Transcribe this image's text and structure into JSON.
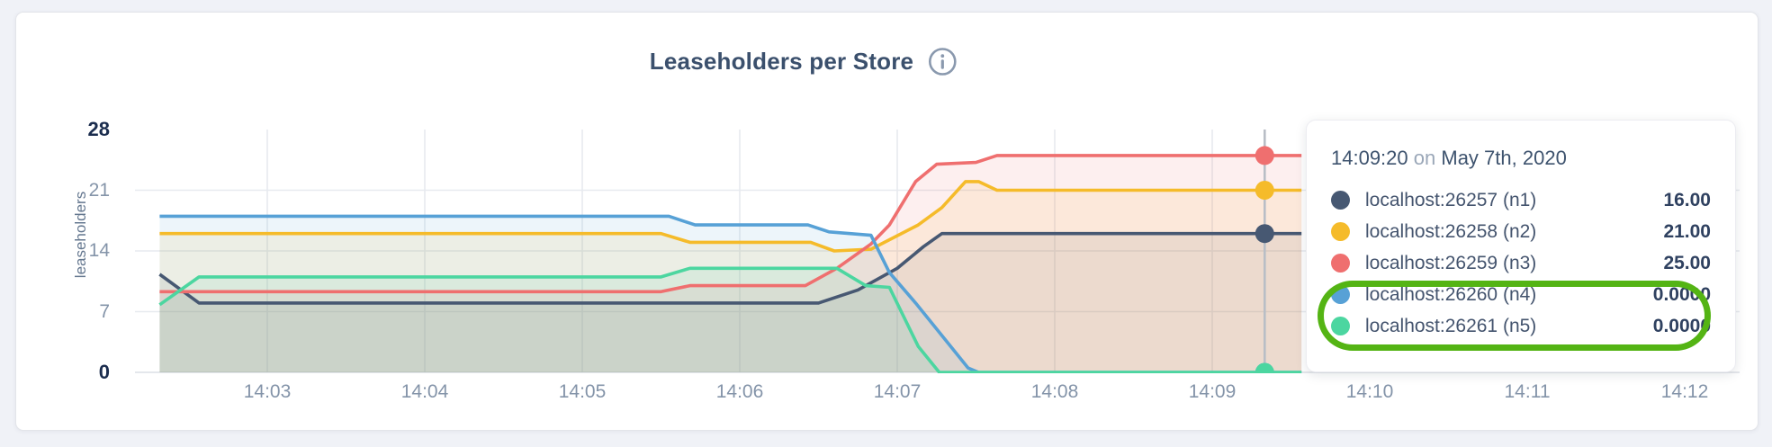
{
  "page": {
    "background": "#f0f2f7"
  },
  "chart_card": {
    "title": "Leaseholders per Store",
    "info_icon": "info-circle-icon",
    "accent_text_color": "#3b506d"
  },
  "tooltip": {
    "time": "14:09:20",
    "preposition": "on",
    "date": "May 7th, 2020",
    "rows": [
      {
        "label": "localhost:26257 (n1)",
        "value": "16.00",
        "color": "#475872",
        "highlighted": false
      },
      {
        "label": "localhost:26258 (n2)",
        "value": "21.00",
        "color": "#f5bb2a",
        "highlighted": false
      },
      {
        "label": "localhost:26259 (n3)",
        "value": "25.00",
        "color": "#ef6f6f",
        "highlighted": false
      },
      {
        "label": "localhost:26260 (n4)",
        "value": "0.0000",
        "color": "#57a1d6",
        "highlighted": true
      },
      {
        "label": "localhost:26261 (n5)",
        "value": "0.0000",
        "color": "#4cd6a0",
        "highlighted": true
      }
    ],
    "highlight_color": "#54b414"
  },
  "chart_data": {
    "type": "area",
    "title": "Leaseholders per Store",
    "xlabel": "",
    "ylabel": "leaseholders",
    "ylim": [
      0,
      28
    ],
    "yticks": [
      0,
      7,
      14,
      21,
      28
    ],
    "yticks_bold": [
      0,
      28
    ],
    "xticks": [
      "14:03",
      "14:04",
      "14:05",
      "14:06",
      "14:07",
      "14:08",
      "14:09",
      "14:10",
      "14:11",
      "14:12"
    ],
    "x_domain": [
      "14:02:19",
      "14:12:21"
    ],
    "grid": "horizontal at 7/14/21, vertical at each minute",
    "legend_position": "hover-tooltip",
    "fill_opacity": 0.11,
    "grid_color": "#e7eaef",
    "axis_line_color": "#dcdfe5",
    "hover": {
      "time": "14:09:20",
      "line_color": "#b9bec6",
      "values": [
        16,
        21,
        25,
        0,
        0
      ]
    },
    "series": [
      {
        "name": "localhost:26257 (n1)",
        "color": "#475872",
        "points": [
          [
            "14:02:19",
            11.3
          ],
          [
            "14:02:34",
            8
          ],
          [
            "14:06:30",
            8
          ],
          [
            "14:06:45",
            9.5
          ],
          [
            "14:07:00",
            12
          ],
          [
            "14:07:10",
            14.5
          ],
          [
            "14:07:17",
            16
          ],
          [
            "14:09:34",
            16
          ]
        ]
      },
      {
        "name": "localhost:26258 (n2)",
        "color": "#f5bb2a",
        "points": [
          [
            "14:02:19",
            16
          ],
          [
            "14:05:30",
            16
          ],
          [
            "14:05:41",
            15
          ],
          [
            "14:06:27",
            15
          ],
          [
            "14:06:36",
            14
          ],
          [
            "14:06:50",
            14.2
          ],
          [
            "14:07:08",
            17
          ],
          [
            "14:07:17",
            19
          ],
          [
            "14:07:26",
            22
          ],
          [
            "14:07:31",
            22
          ],
          [
            "14:07:38",
            21
          ],
          [
            "14:09:34",
            21
          ]
        ]
      },
      {
        "name": "localhost:26259 (n3)",
        "color": "#ef6f6f",
        "points": [
          [
            "14:02:19",
            9.3
          ],
          [
            "14:05:30",
            9.3
          ],
          [
            "14:05:41",
            10
          ],
          [
            "14:06:25",
            10
          ],
          [
            "14:06:37",
            12
          ],
          [
            "14:06:50",
            14.8
          ],
          [
            "14:06:57",
            17
          ],
          [
            "14:07:07",
            22
          ],
          [
            "14:07:15",
            24
          ],
          [
            "14:07:30",
            24.2
          ],
          [
            "14:07:38",
            25
          ],
          [
            "14:09:34",
            25
          ]
        ]
      },
      {
        "name": "localhost:26260 (n4)",
        "color": "#57a1d6",
        "points": [
          [
            "14:02:19",
            18
          ],
          [
            "14:05:33",
            18
          ],
          [
            "14:05:43",
            17
          ],
          [
            "14:06:26",
            17
          ],
          [
            "14:06:34",
            16.2
          ],
          [
            "14:06:50",
            15.8
          ],
          [
            "14:06:57",
            11.5
          ],
          [
            "14:07:07",
            8
          ],
          [
            "14:07:27",
            0.5
          ],
          [
            "14:07:31",
            0
          ],
          [
            "14:09:34",
            0
          ]
        ]
      },
      {
        "name": "localhost:26261 (n5)",
        "color": "#4cd6a0",
        "points": [
          [
            "14:02:19",
            7.8
          ],
          [
            "14:02:34",
            11
          ],
          [
            "14:05:30",
            11
          ],
          [
            "14:05:41",
            12
          ],
          [
            "14:06:37",
            12
          ],
          [
            "14:06:48",
            10
          ],
          [
            "14:06:57",
            9.8
          ],
          [
            "14:07:08",
            3
          ],
          [
            "14:07:16",
            0
          ],
          [
            "14:09:34",
            0
          ]
        ]
      }
    ]
  }
}
